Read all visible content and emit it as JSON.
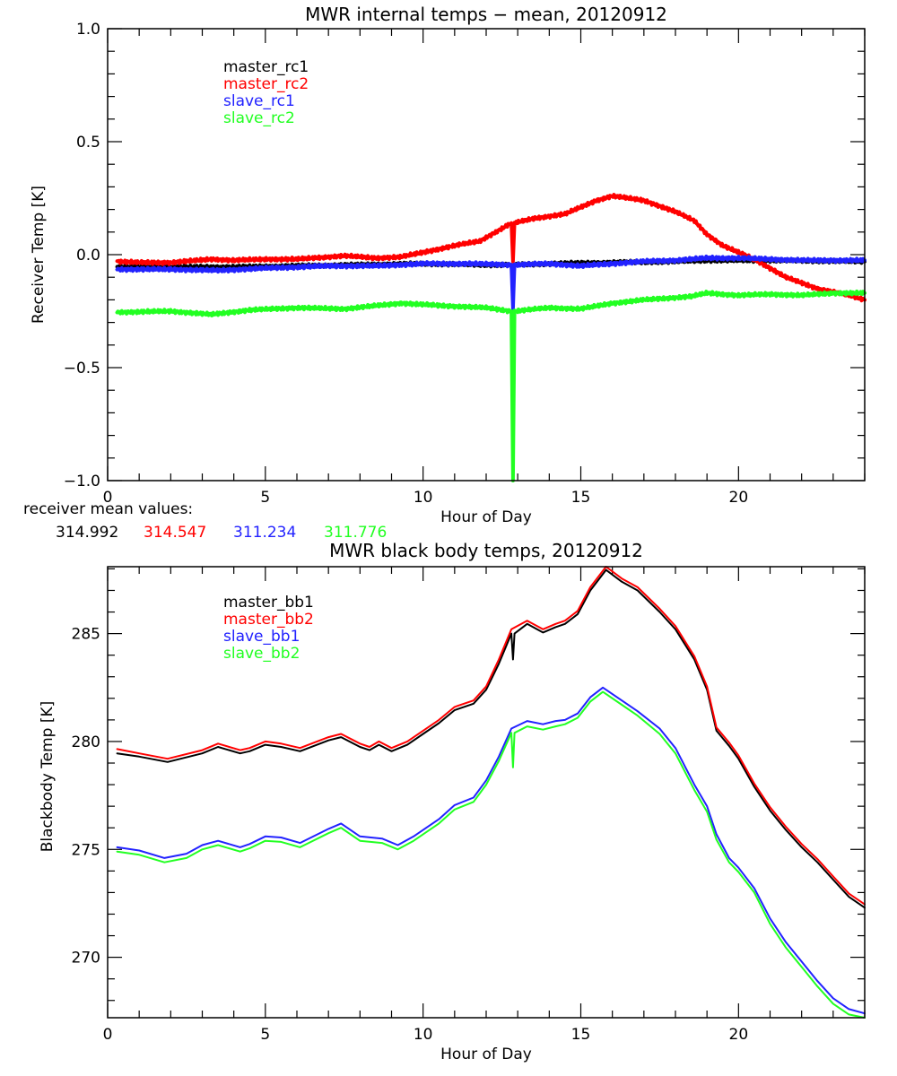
{
  "chart_data": [
    {
      "type": "line",
      "title": "MWR internal temps − mean, 20120912",
      "xlabel": "Hour of Day",
      "ylabel": "Receiver Temp [K]",
      "xlim": [
        0,
        24
      ],
      "ylim": [
        -1.0,
        1.0
      ],
      "xticks": [
        0,
        5,
        10,
        15,
        20
      ],
      "xtick_labels": [
        "0",
        "5",
        "10",
        "15",
        "20"
      ],
      "yticks": [
        -1.0,
        -0.5,
        0.0,
        0.5,
        1.0
      ],
      "ytick_labels": [
        "−1.0",
        "−0.5",
        "0.0",
        "0.5",
        "1.0"
      ],
      "x_minor_step": 1,
      "y_minor_step": 0.1,
      "grid": false,
      "legend_position": "top-left",
      "noisy": true,
      "series": [
        {
          "name": "master_rc1",
          "color": "#000000",
          "x": [
            0.3,
            2,
            4,
            6,
            8,
            10,
            12,
            12.8,
            12.85,
            12.9,
            14,
            16,
            18,
            19,
            21,
            24
          ],
          "y": [
            -0.055,
            -0.055,
            -0.055,
            -0.05,
            -0.045,
            -0.04,
            -0.045,
            -0.045,
            -0.13,
            -0.045,
            -0.04,
            -0.035,
            -0.03,
            -0.025,
            -0.025,
            -0.03
          ]
        },
        {
          "name": "master_rc2",
          "color": "#ff0000",
          "x": [
            0.3,
            1,
            2,
            3.3,
            4,
            5,
            6,
            7.5,
            8.5,
            9.3,
            10,
            11,
            11.8,
            12.3,
            12.8,
            12.85,
            12.9,
            13.5,
            14.5,
            15.5,
            16,
            17,
            18,
            18.6,
            19,
            19.5,
            20,
            20.5,
            21,
            21.5,
            22.5,
            23.5,
            24
          ],
          "y": [
            -0.03,
            -0.035,
            -0.035,
            -0.02,
            -0.025,
            -0.02,
            -0.02,
            -0.005,
            -0.015,
            -0.01,
            0.01,
            0.04,
            0.06,
            0.1,
            0.14,
            -0.03,
            0.14,
            0.16,
            0.18,
            0.24,
            0.26,
            0.24,
            0.19,
            0.15,
            0.09,
            0.04,
            0.01,
            -0.02,
            -0.06,
            -0.1,
            -0.15,
            -0.18,
            -0.2
          ]
        },
        {
          "name": "slave_rc1",
          "color": "#2222ff",
          "x": [
            0.3,
            2,
            3.5,
            5,
            7,
            8.5,
            10,
            11.5,
            12.8,
            12.85,
            12.9,
            14,
            15,
            16,
            17,
            18,
            19,
            20,
            21,
            22,
            23,
            24
          ],
          "y": [
            -0.065,
            -0.065,
            -0.07,
            -0.06,
            -0.05,
            -0.05,
            -0.04,
            -0.04,
            -0.045,
            -0.24,
            -0.045,
            -0.04,
            -0.05,
            -0.04,
            -0.03,
            -0.025,
            -0.015,
            -0.015,
            -0.02,
            -0.025,
            -0.025,
            -0.025
          ]
        },
        {
          "name": "slave_rc2",
          "color": "#22ff22",
          "x": [
            0.3,
            2,
            3.3,
            4.5,
            6,
            7.5,
            9.3,
            10.5,
            12,
            12.8,
            12.85,
            12.9,
            14,
            15,
            16,
            17,
            17.5,
            18.5,
            19,
            20,
            21,
            22,
            23,
            24
          ],
          "y": [
            -0.255,
            -0.25,
            -0.265,
            -0.245,
            -0.235,
            -0.24,
            -0.215,
            -0.225,
            -0.235,
            -0.25,
            -1.0,
            -0.25,
            -0.235,
            -0.24,
            -0.215,
            -0.2,
            -0.195,
            -0.185,
            -0.17,
            -0.18,
            -0.175,
            -0.18,
            -0.17,
            -0.17
          ]
        }
      ],
      "annotations": {
        "label": "receiver mean values:",
        "values": [
          {
            "text": "314.992",
            "color": "#000000"
          },
          {
            "text": "314.547",
            "color": "#ff0000"
          },
          {
            "text": "311.234",
            "color": "#2222ff"
          },
          {
            "text": "311.776",
            "color": "#22ff22"
          }
        ]
      }
    },
    {
      "type": "line",
      "title": "MWR black body temps, 20120912",
      "xlabel": "Hour of Day",
      "ylabel": "Blackbody Temp [K]",
      "xlim": [
        0,
        24
      ],
      "ylim": [
        267.2,
        288.1
      ],
      "xticks": [
        0,
        5,
        10,
        15,
        20
      ],
      "xtick_labels": [
        "0",
        "5",
        "10",
        "15",
        "20"
      ],
      "yticks": [
        270,
        275,
        280,
        285
      ],
      "ytick_labels": [
        "270",
        "275",
        "280",
        "285"
      ],
      "x_minor_step": 1,
      "y_minor_step": 1,
      "grid": false,
      "legend_position": "top-left",
      "noisy": false,
      "series": [
        {
          "name": "master_bb1",
          "color": "#000000",
          "x": [
            0.3,
            1,
            1.9,
            3,
            3.5,
            4.2,
            4.5,
            5,
            5.5,
            6.1,
            7,
            7.4,
            8,
            8.3,
            8.6,
            9.0,
            9.5,
            10,
            10.5,
            11,
            11.6,
            12,
            12.4,
            12.8,
            12.85,
            12.9,
            13.3,
            13.8,
            14.2,
            14.5,
            14.9,
            15.3,
            15.8,
            16.3,
            16.8,
            17.5,
            18.0,
            18.6,
            19.0,
            19.3,
            19.7,
            20,
            20.5,
            21,
            21.5,
            22,
            22.5,
            23,
            23.5,
            24
          ],
          "y": [
            279.45,
            279.3,
            279.05,
            279.45,
            279.75,
            279.45,
            279.55,
            279.85,
            279.75,
            279.55,
            280.05,
            280.2,
            279.75,
            279.6,
            279.85,
            279.55,
            279.85,
            280.35,
            280.85,
            281.45,
            281.75,
            282.4,
            283.6,
            285.0,
            283.8,
            285.0,
            285.45,
            285.05,
            285.3,
            285.45,
            285.9,
            287.0,
            287.95,
            287.4,
            287.0,
            286.0,
            285.2,
            283.8,
            282.4,
            280.5,
            279.8,
            279.2,
            277.9,
            276.8,
            275.9,
            275.1,
            274.4,
            273.6,
            272.8,
            272.3
          ]
        },
        {
          "name": "master_bb2",
          "color": "#ff0000",
          "x": [
            0.3,
            1,
            1.9,
            3,
            3.5,
            4.2,
            4.5,
            5,
            5.5,
            6.1,
            7,
            7.4,
            8,
            8.3,
            8.6,
            9.0,
            9.5,
            10,
            10.5,
            11,
            11.6,
            12,
            12.4,
            12.8,
            13.3,
            13.8,
            14.2,
            14.5,
            14.9,
            15.3,
            15.8,
            16.3,
            16.8,
            17.5,
            18.0,
            18.6,
            19.0,
            19.3,
            19.7,
            20,
            20.5,
            21,
            21.5,
            22,
            22.5,
            23,
            23.5,
            24
          ],
          "y": [
            279.65,
            279.45,
            279.2,
            279.6,
            279.9,
            279.6,
            279.7,
            280.0,
            279.9,
            279.7,
            280.2,
            280.35,
            279.9,
            279.75,
            280.0,
            279.7,
            280.0,
            280.5,
            281.0,
            281.6,
            281.9,
            282.55,
            283.8,
            285.2,
            285.6,
            285.2,
            285.45,
            285.6,
            286.05,
            287.15,
            288.1,
            287.55,
            287.15,
            286.15,
            285.35,
            283.95,
            282.55,
            280.65,
            279.95,
            279.35,
            278.05,
            276.95,
            276.05,
            275.25,
            274.55,
            273.75,
            272.95,
            272.45
          ]
        },
        {
          "name": "slave_bb1",
          "color": "#2222ff",
          "x": [
            0.3,
            1,
            1.8,
            2.5,
            3,
            3.5,
            4.2,
            4.5,
            5,
            5.5,
            6.1,
            7,
            7.4,
            8,
            8.7,
            9.2,
            9.7,
            10,
            10.5,
            11,
            11.6,
            12,
            12.4,
            12.8,
            13.3,
            13.8,
            14.2,
            14.5,
            14.9,
            15.3,
            15.7,
            16.3,
            16.8,
            17.5,
            18.0,
            18.6,
            19.0,
            19.3,
            19.7,
            20,
            20.5,
            21,
            21.5,
            22,
            22.5,
            23,
            23.5,
            24
          ],
          "y": [
            275.1,
            274.95,
            274.6,
            274.8,
            275.2,
            275.4,
            275.1,
            275.25,
            275.6,
            275.55,
            275.3,
            275.95,
            276.2,
            275.6,
            275.5,
            275.2,
            275.6,
            275.9,
            276.4,
            277.05,
            277.4,
            278.2,
            279.3,
            280.6,
            280.95,
            280.8,
            280.95,
            281.0,
            281.3,
            282.05,
            282.5,
            281.9,
            281.4,
            280.6,
            279.7,
            278.0,
            277.0,
            275.7,
            274.6,
            274.15,
            273.2,
            271.8,
            270.7,
            269.8,
            268.9,
            268.1,
            267.6,
            267.4
          ]
        },
        {
          "name": "slave_bb2",
          "color": "#22ff22",
          "x": [
            0.3,
            1,
            1.8,
            2.5,
            3,
            3.5,
            4.2,
            4.5,
            5,
            5.5,
            6.1,
            7,
            7.4,
            8,
            8.7,
            9.2,
            9.7,
            10,
            10.5,
            11,
            11.6,
            12,
            12.4,
            12.8,
            12.85,
            12.9,
            13.3,
            13.8,
            14.2,
            14.5,
            14.9,
            15.3,
            15.7,
            16.3,
            16.8,
            17.5,
            18.0,
            18.6,
            19.0,
            19.3,
            19.7,
            20,
            20.5,
            21,
            21.5,
            22,
            22.5,
            23,
            23.5,
            24
          ],
          "y": [
            274.9,
            274.75,
            274.4,
            274.6,
            275.0,
            275.2,
            274.9,
            275.05,
            275.4,
            275.35,
            275.1,
            275.75,
            276.0,
            275.4,
            275.3,
            275.0,
            275.4,
            275.7,
            276.2,
            276.85,
            277.2,
            278.0,
            279.1,
            280.4,
            278.8,
            280.4,
            280.7,
            280.55,
            280.7,
            280.8,
            281.1,
            281.85,
            282.3,
            281.7,
            281.2,
            280.35,
            279.45,
            277.75,
            276.75,
            275.45,
            274.4,
            273.95,
            273.0,
            271.55,
            270.45,
            269.55,
            268.65,
            267.85,
            267.35,
            267.2
          ]
        }
      ]
    }
  ]
}
